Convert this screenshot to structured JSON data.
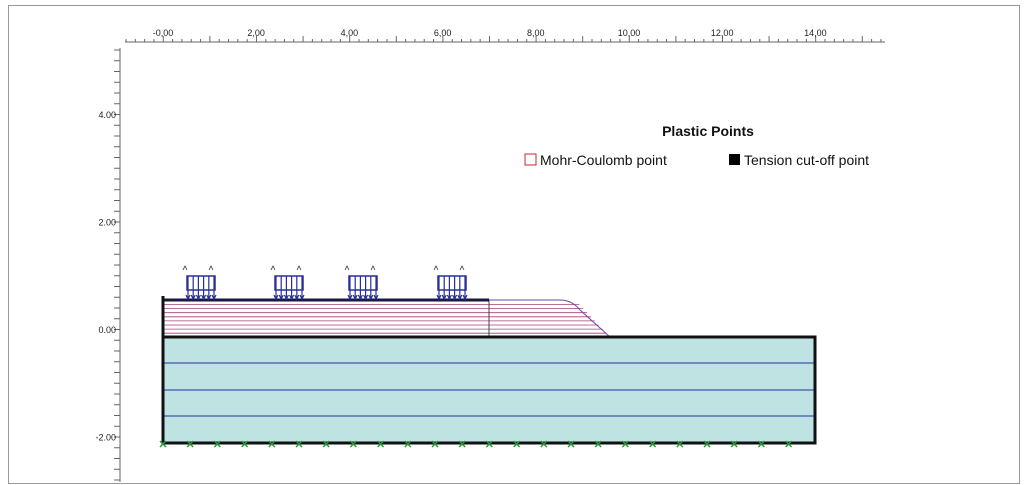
{
  "ruler": {
    "x_labels": [
      "-0,00",
      "2,00",
      "4,00",
      "6,00",
      "8,00",
      "10,00",
      "12,00",
      "14,00"
    ],
    "y_labels": [
      "4.00",
      "2.00",
      "0.00",
      "-2.00"
    ]
  },
  "legend": {
    "title": "Plastic Points",
    "items": [
      {
        "label": "Mohr-Coulomb point"
      },
      {
        "label": "Tension cut-off point"
      }
    ]
  }
}
